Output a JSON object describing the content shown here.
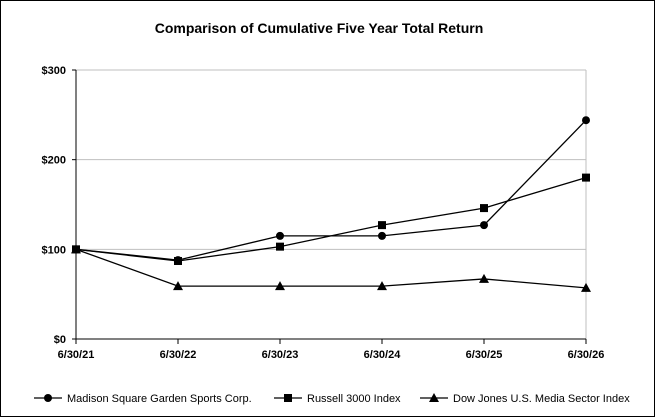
{
  "chart_data": {
    "type": "line",
    "title": "Comparison of Cumulative Five Year Total Return",
    "categories": [
      "6/30/21",
      "6/30/22",
      "6/30/23",
      "6/30/24",
      "6/30/25",
      "6/30/26"
    ],
    "y_tick_labels": [
      "$0",
      "$100",
      "$200",
      "$300"
    ],
    "ylim": [
      0,
      300
    ],
    "grid": "horizontal",
    "legend_position": "bottom",
    "series": [
      {
        "name": "Madison Square Garden Sports Corp.",
        "marker": "circle",
        "values": [
          100,
          88,
          115,
          115,
          127,
          244
        ]
      },
      {
        "name": "Russell 3000 Index",
        "marker": "square",
        "values": [
          100,
          87,
          103,
          127,
          146,
          180
        ]
      },
      {
        "name": "Dow Jones U.S. Media Sector Index",
        "marker": "triangle",
        "values": [
          100,
          59,
          59,
          59,
          67,
          57
        ]
      }
    ],
    "colors": {
      "line": "#000000",
      "grid": "#bfbfbf",
      "background": "#ffffff"
    }
  }
}
